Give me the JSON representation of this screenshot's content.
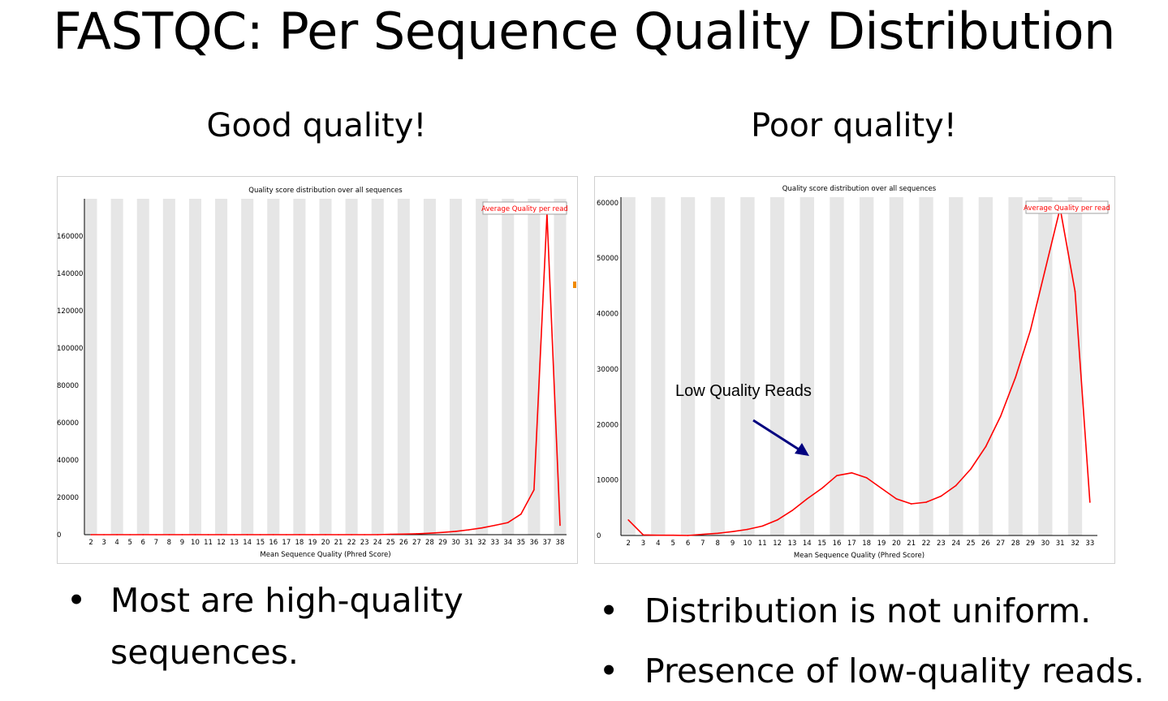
{
  "slide": {
    "title": "FASTQC: Per Sequence Quality Distribution",
    "left_heading": "Good quality!",
    "right_heading": "Poor quality!",
    "left_bullets": [
      "Most are high-quality sequences."
    ],
    "right_bullets": [
      "Distribution is not uniform.",
      "Presence of low-quality reads."
    ]
  },
  "chart_data": [
    {
      "type": "line",
      "title": "Quality score distribution over all sequences",
      "xlabel": "Mean Sequence Quality (Phred Score)",
      "ylabel": "",
      "legend": "Average Quality per read",
      "legend_position": "top-right",
      "line_color": "#ff0000",
      "band_color": "#e6e6e6",
      "grid": "alternating vertical bands",
      "categories": [
        "2",
        "3",
        "4",
        "5",
        "6",
        "7",
        "8",
        "9",
        "10",
        "11",
        "12",
        "13",
        "14",
        "15",
        "16",
        "17",
        "18",
        "19",
        "20",
        "21",
        "22",
        "23",
        "24",
        "25",
        "26",
        "27",
        "28",
        "29",
        "30",
        "31",
        "32",
        "33",
        "34",
        "35",
        "36",
        "37",
        "38"
      ],
      "values": [
        0,
        0,
        0,
        0,
        0,
        0,
        0,
        0,
        0,
        0,
        0,
        0,
        0,
        0,
        0,
        0,
        0,
        0,
        0,
        0,
        0,
        0,
        0,
        200,
        300,
        500,
        800,
        1200,
        1800,
        2600,
        3600,
        5000,
        6500,
        11000,
        24000,
        172000,
        5000
      ],
      "yticks": [
        0,
        20000,
        40000,
        60000,
        80000,
        100000,
        120000,
        140000,
        160000
      ],
      "ylim": [
        0,
        180000
      ]
    },
    {
      "type": "line",
      "title": "Quality score distribution over all sequences",
      "xlabel": "Mean Sequence Quality (Phred Score)",
      "ylabel": "",
      "legend": "Average Quality per read",
      "legend_position": "top-right",
      "line_color": "#ff0000",
      "band_color": "#e6e6e6",
      "grid": "alternating vertical bands",
      "categories": [
        "2",
        "3",
        "4",
        "5",
        "6",
        "7",
        "8",
        "9",
        "10",
        "11",
        "12",
        "13",
        "14",
        "15",
        "16",
        "17",
        "18",
        "19",
        "20",
        "21",
        "22",
        "23",
        "24",
        "25",
        "26",
        "27",
        "28",
        "29",
        "30",
        "31",
        "32",
        "33"
      ],
      "values": [
        2800,
        100,
        50,
        50,
        0,
        200,
        400,
        700,
        1100,
        1700,
        2800,
        4500,
        6600,
        8500,
        10800,
        11300,
        10400,
        8500,
        6600,
        5700,
        6000,
        7100,
        9000,
        12000,
        16000,
        21500,
        28500,
        37000,
        48000,
        59000,
        44000,
        6000
      ],
      "yticks": [
        0,
        10000,
        20000,
        30000,
        40000,
        50000,
        60000
      ],
      "ylim": [
        0,
        61000
      ],
      "annotation": {
        "text": "Low Quality Reads",
        "points_to_x": "16",
        "arrow_color": "#00007f"
      }
    }
  ]
}
